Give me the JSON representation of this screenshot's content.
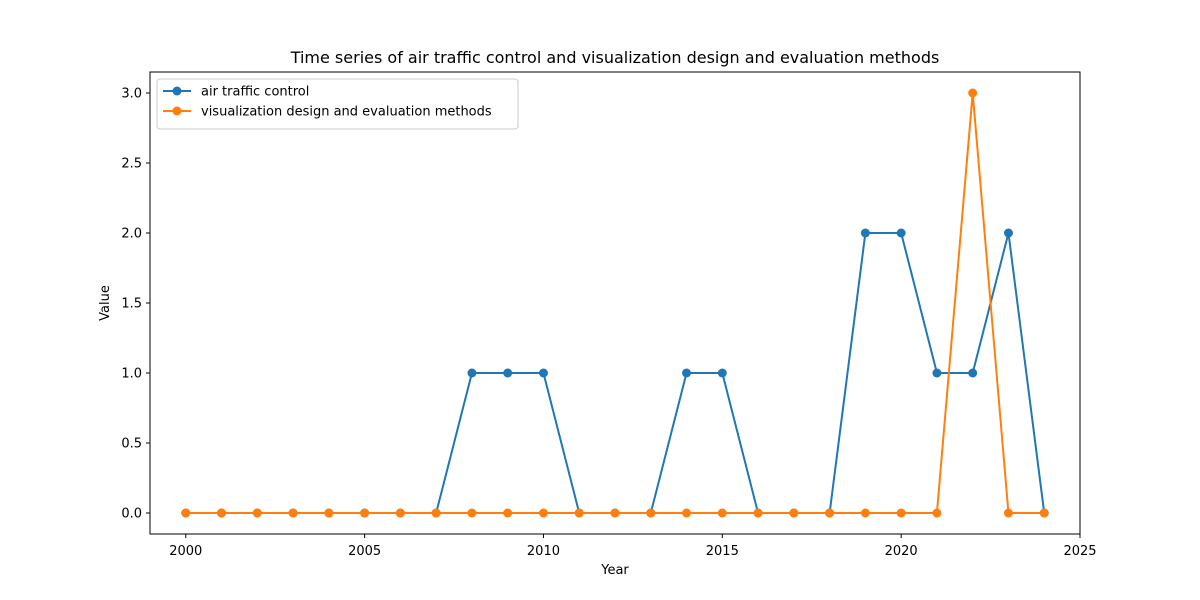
{
  "chart_data": {
    "type": "line",
    "title": "Time series of air traffic control and visualization design and evaluation methods",
    "xlabel": "Year",
    "ylabel": "Value",
    "xlim": [
      1999,
      2025
    ],
    "ylim": [
      -0.15,
      3.15
    ],
    "xticks": [
      2000,
      2005,
      2010,
      2015,
      2020,
      2025
    ],
    "yticks": [
      0.0,
      0.5,
      1.0,
      1.5,
      2.0,
      2.5,
      3.0
    ],
    "ytick_labels": [
      "0.0",
      "0.5",
      "1.0",
      "1.5",
      "2.0",
      "2.5",
      "3.0"
    ],
    "grid": false,
    "legend_position": "top-left",
    "x": [
      2000,
      2001,
      2002,
      2003,
      2004,
      2005,
      2006,
      2007,
      2008,
      2009,
      2010,
      2011,
      2012,
      2013,
      2014,
      2015,
      2016,
      2017,
      2018,
      2019,
      2020,
      2021,
      2022,
      2023,
      2024
    ],
    "series": [
      {
        "name": "air traffic control",
        "color": "#1f77b4",
        "values": [
          0,
          0,
          0,
          0,
          0,
          0,
          0,
          0,
          1,
          1,
          1,
          0,
          0,
          0,
          1,
          1,
          0,
          0,
          0,
          2,
          2,
          1,
          1,
          2,
          0
        ]
      },
      {
        "name": "visualization design and evaluation methods",
        "color": "#ff7f0e",
        "values": [
          0,
          0,
          0,
          0,
          0,
          0,
          0,
          0,
          0,
          0,
          0,
          0,
          0,
          0,
          0,
          0,
          0,
          0,
          0,
          0,
          0,
          0,
          3,
          0,
          0
        ]
      }
    ]
  }
}
